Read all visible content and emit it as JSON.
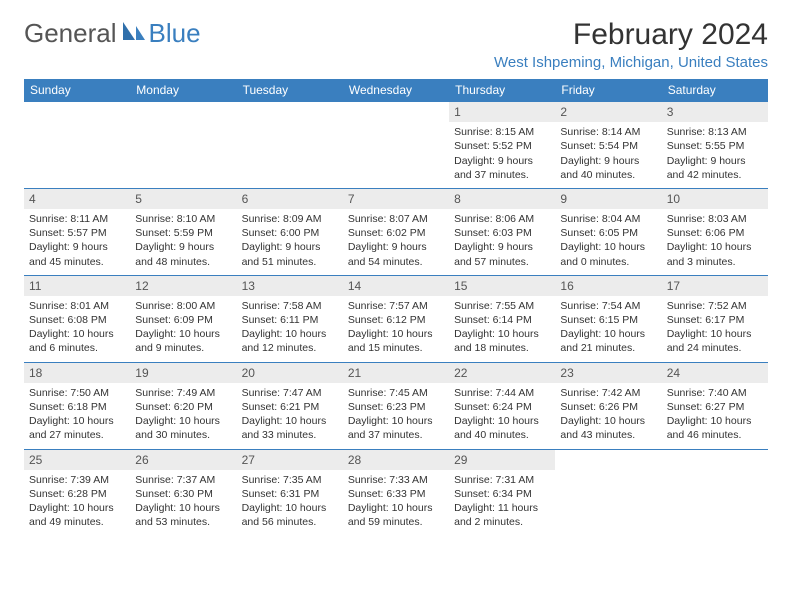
{
  "logo": {
    "general": "General",
    "blue": "Blue"
  },
  "title": "February 2024",
  "location": "West Ishpeming, Michigan, United States",
  "colors": {
    "accent": "#3a7fbf",
    "header_bg": "#3a7fbf",
    "daynum_bg": "#ececec",
    "text": "#333333",
    "bg": "#ffffff"
  },
  "calendar": {
    "type": "table",
    "day_headers": [
      "Sunday",
      "Monday",
      "Tuesday",
      "Wednesday",
      "Thursday",
      "Friday",
      "Saturday"
    ],
    "weeks": [
      [
        null,
        null,
        null,
        null,
        {
          "n": "1",
          "sr": "8:15 AM",
          "ss": "5:52 PM",
          "dl": "9 hours and 37 minutes."
        },
        {
          "n": "2",
          "sr": "8:14 AM",
          "ss": "5:54 PM",
          "dl": "9 hours and 40 minutes."
        },
        {
          "n": "3",
          "sr": "8:13 AM",
          "ss": "5:55 PM",
          "dl": "9 hours and 42 minutes."
        }
      ],
      [
        {
          "n": "4",
          "sr": "8:11 AM",
          "ss": "5:57 PM",
          "dl": "9 hours and 45 minutes."
        },
        {
          "n": "5",
          "sr": "8:10 AM",
          "ss": "5:59 PM",
          "dl": "9 hours and 48 minutes."
        },
        {
          "n": "6",
          "sr": "8:09 AM",
          "ss": "6:00 PM",
          "dl": "9 hours and 51 minutes."
        },
        {
          "n": "7",
          "sr": "8:07 AM",
          "ss": "6:02 PM",
          "dl": "9 hours and 54 minutes."
        },
        {
          "n": "8",
          "sr": "8:06 AM",
          "ss": "6:03 PM",
          "dl": "9 hours and 57 minutes."
        },
        {
          "n": "9",
          "sr": "8:04 AM",
          "ss": "6:05 PM",
          "dl": "10 hours and 0 minutes."
        },
        {
          "n": "10",
          "sr": "8:03 AM",
          "ss": "6:06 PM",
          "dl": "10 hours and 3 minutes."
        }
      ],
      [
        {
          "n": "11",
          "sr": "8:01 AM",
          "ss": "6:08 PM",
          "dl": "10 hours and 6 minutes."
        },
        {
          "n": "12",
          "sr": "8:00 AM",
          "ss": "6:09 PM",
          "dl": "10 hours and 9 minutes."
        },
        {
          "n": "13",
          "sr": "7:58 AM",
          "ss": "6:11 PM",
          "dl": "10 hours and 12 minutes."
        },
        {
          "n": "14",
          "sr": "7:57 AM",
          "ss": "6:12 PM",
          "dl": "10 hours and 15 minutes."
        },
        {
          "n": "15",
          "sr": "7:55 AM",
          "ss": "6:14 PM",
          "dl": "10 hours and 18 minutes."
        },
        {
          "n": "16",
          "sr": "7:54 AM",
          "ss": "6:15 PM",
          "dl": "10 hours and 21 minutes."
        },
        {
          "n": "17",
          "sr": "7:52 AM",
          "ss": "6:17 PM",
          "dl": "10 hours and 24 minutes."
        }
      ],
      [
        {
          "n": "18",
          "sr": "7:50 AM",
          "ss": "6:18 PM",
          "dl": "10 hours and 27 minutes."
        },
        {
          "n": "19",
          "sr": "7:49 AM",
          "ss": "6:20 PM",
          "dl": "10 hours and 30 minutes."
        },
        {
          "n": "20",
          "sr": "7:47 AM",
          "ss": "6:21 PM",
          "dl": "10 hours and 33 minutes."
        },
        {
          "n": "21",
          "sr": "7:45 AM",
          "ss": "6:23 PM",
          "dl": "10 hours and 37 minutes."
        },
        {
          "n": "22",
          "sr": "7:44 AM",
          "ss": "6:24 PM",
          "dl": "10 hours and 40 minutes."
        },
        {
          "n": "23",
          "sr": "7:42 AM",
          "ss": "6:26 PM",
          "dl": "10 hours and 43 minutes."
        },
        {
          "n": "24",
          "sr": "7:40 AM",
          "ss": "6:27 PM",
          "dl": "10 hours and 46 minutes."
        }
      ],
      [
        {
          "n": "25",
          "sr": "7:39 AM",
          "ss": "6:28 PM",
          "dl": "10 hours and 49 minutes."
        },
        {
          "n": "26",
          "sr": "7:37 AM",
          "ss": "6:30 PM",
          "dl": "10 hours and 53 minutes."
        },
        {
          "n": "27",
          "sr": "7:35 AM",
          "ss": "6:31 PM",
          "dl": "10 hours and 56 minutes."
        },
        {
          "n": "28",
          "sr": "7:33 AM",
          "ss": "6:33 PM",
          "dl": "10 hours and 59 minutes."
        },
        {
          "n": "29",
          "sr": "7:31 AM",
          "ss": "6:34 PM",
          "dl": "11 hours and 2 minutes."
        },
        null,
        null
      ]
    ],
    "labels": {
      "sunrise": "Sunrise:",
      "sunset": "Sunset:",
      "daylight": "Daylight:"
    }
  }
}
